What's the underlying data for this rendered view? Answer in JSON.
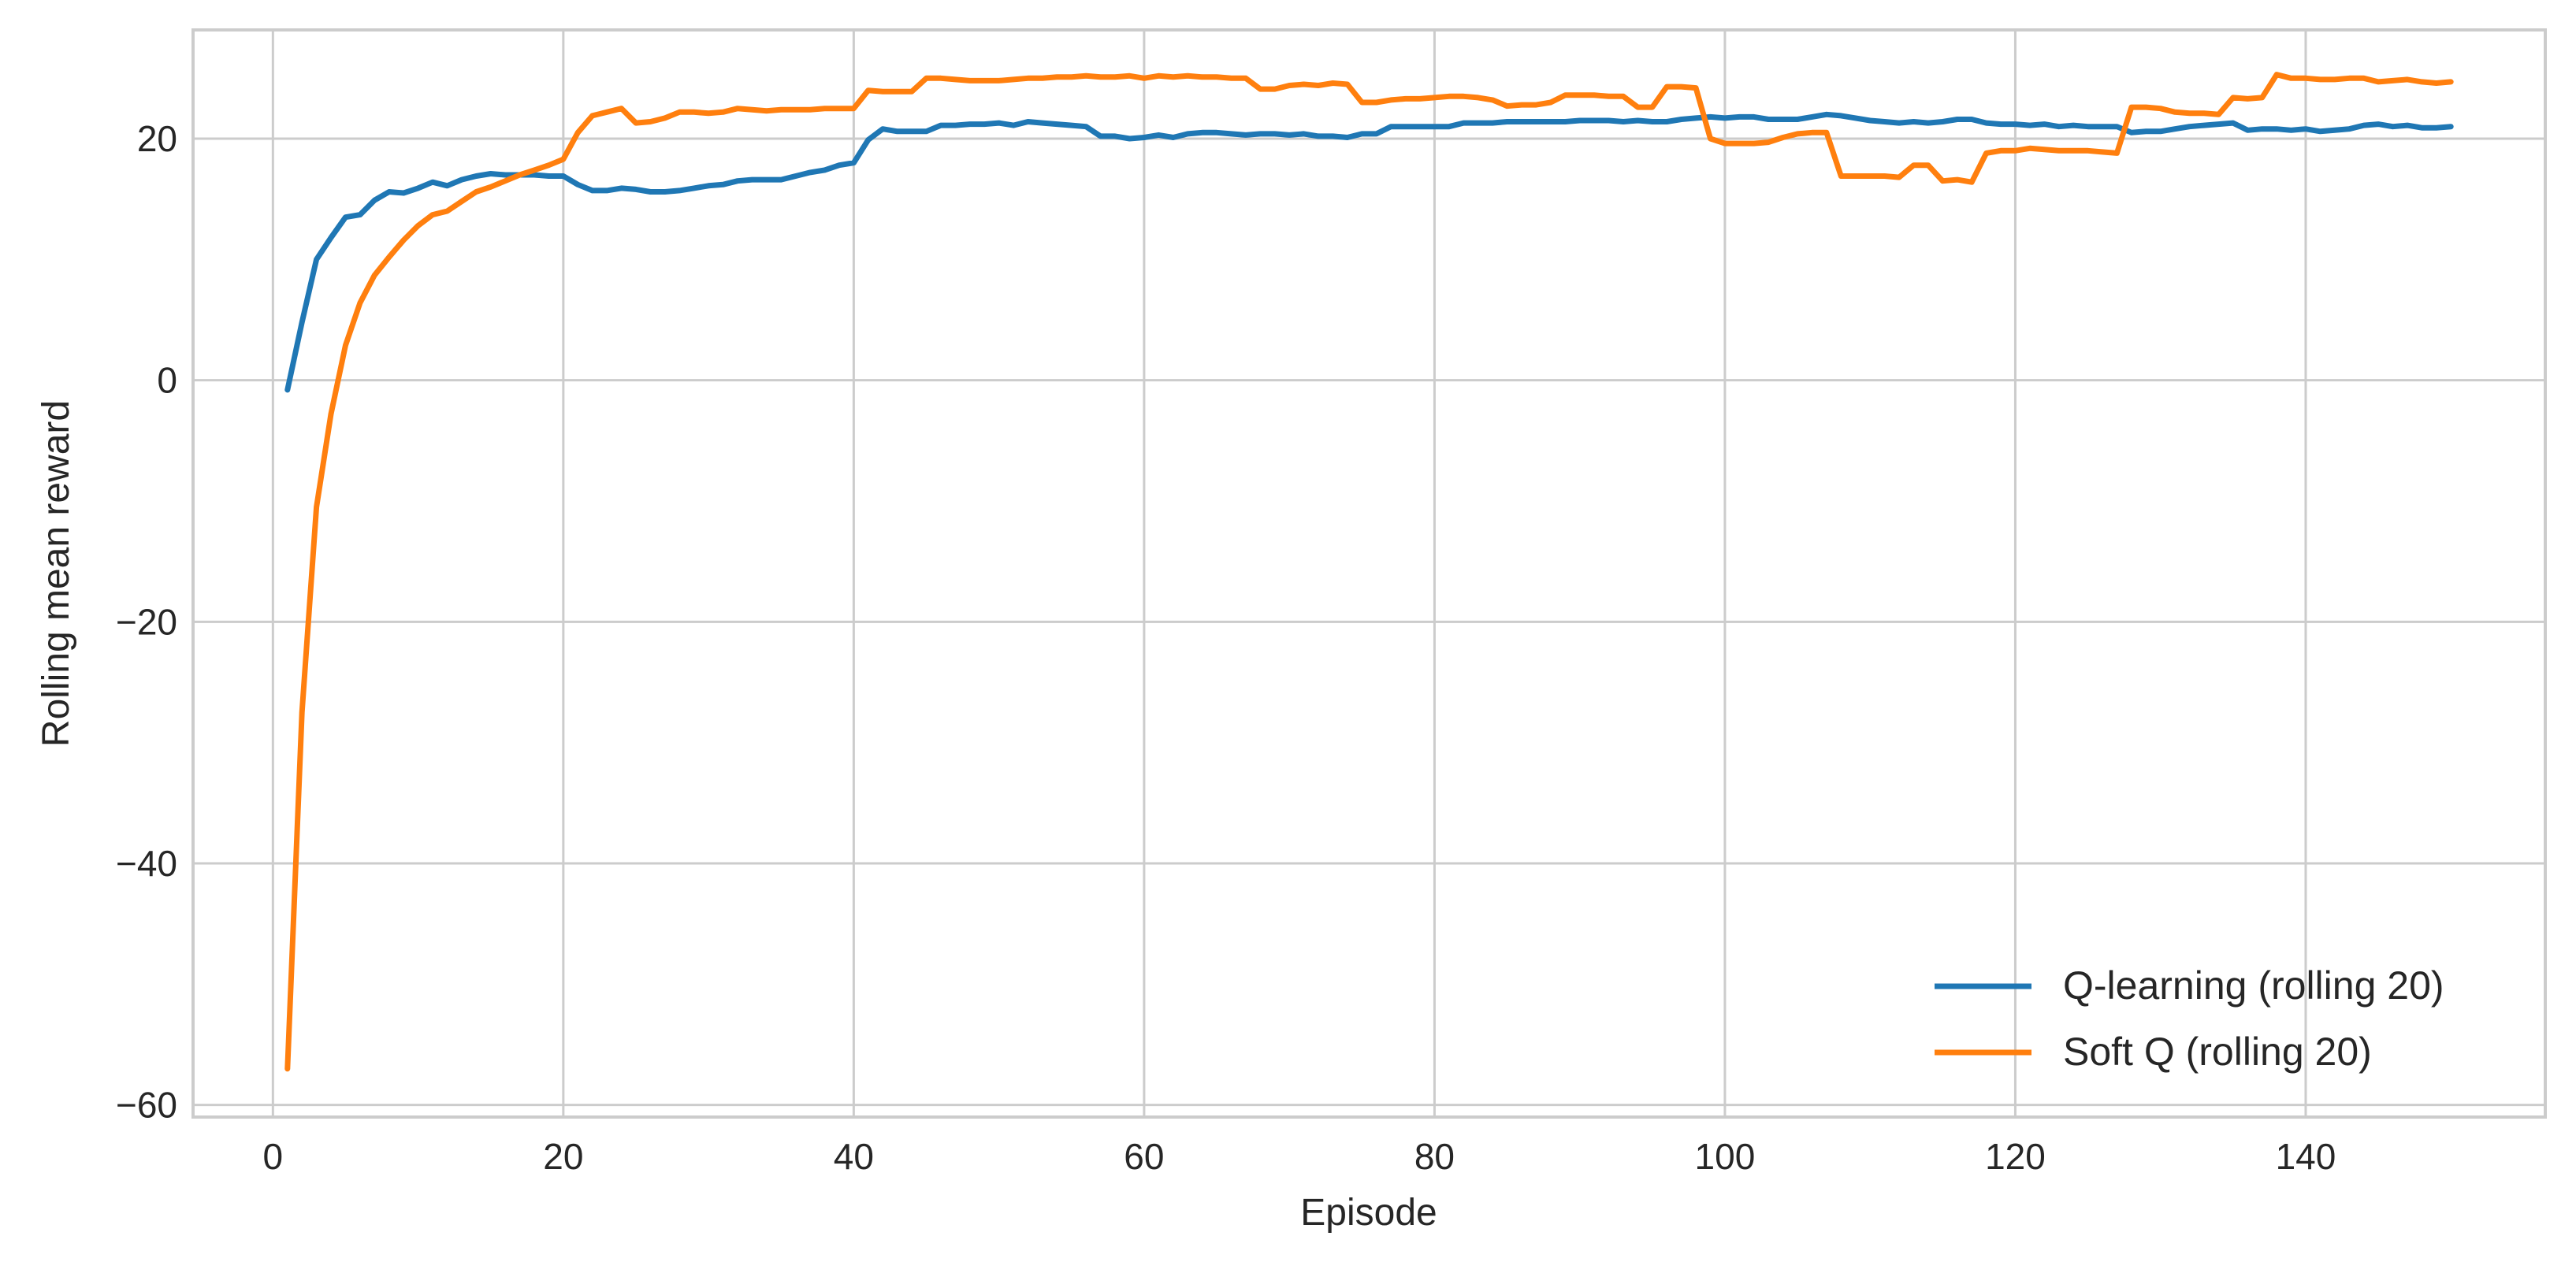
{
  "chart_data": {
    "type": "line",
    "title": "",
    "xlabel": "Episode",
    "ylabel": "Rolling mean reward",
    "xlim": [
      -5.5,
      156.5
    ],
    "ylim": [
      -61,
      29
    ],
    "xticks": [
      0,
      20,
      40,
      60,
      80,
      100,
      120,
      140
    ],
    "yticks": [
      20,
      0,
      -20,
      -40,
      -60
    ],
    "xtick_labels": [
      "0",
      "20",
      "40",
      "60",
      "80",
      "100",
      "120",
      "140"
    ],
    "ytick_labels": [
      "20",
      "0",
      "−20",
      "−40",
      "−60"
    ],
    "grid": true,
    "legend_position": "lower-right",
    "series": [
      {
        "name": "Q-learning (rolling 20)",
        "color": "#1f77b4",
        "x": [
          1,
          2,
          3,
          4,
          5,
          6,
          7,
          8,
          9,
          10,
          11,
          12,
          13,
          14,
          15,
          16,
          17,
          18,
          19,
          20,
          21,
          22,
          23,
          24,
          25,
          26,
          27,
          28,
          29,
          30,
          31,
          32,
          33,
          34,
          35,
          36,
          37,
          38,
          39,
          40,
          41,
          42,
          43,
          44,
          45,
          46,
          47,
          48,
          49,
          50,
          51,
          52,
          53,
          54,
          55,
          56,
          57,
          58,
          59,
          60,
          61,
          62,
          63,
          64,
          65,
          66,
          67,
          68,
          69,
          70,
          71,
          72,
          73,
          74,
          75,
          76,
          77,
          78,
          79,
          80,
          81,
          82,
          83,
          84,
          85,
          86,
          87,
          88,
          89,
          90,
          91,
          92,
          93,
          94,
          95,
          96,
          97,
          98,
          99,
          100,
          101,
          102,
          103,
          104,
          105,
          106,
          107,
          108,
          109,
          110,
          111,
          112,
          113,
          114,
          115,
          116,
          117,
          118,
          119,
          120,
          121,
          122,
          123,
          124,
          125,
          126,
          127,
          128,
          129,
          130,
          131,
          132,
          133,
          134,
          135,
          136,
          137,
          138,
          139,
          140,
          141,
          142,
          143,
          144,
          145,
          146,
          147,
          148,
          149,
          150
        ],
        "y": [
          -0.8,
          4.8,
          10.0,
          11.8,
          13.5,
          13.7,
          14.9,
          15.6,
          15.5,
          15.9,
          16.4,
          16.1,
          16.6,
          16.9,
          17.1,
          17.0,
          17.0,
          17.0,
          16.9,
          16.9,
          16.2,
          15.7,
          15.7,
          15.9,
          15.8,
          15.6,
          15.6,
          15.7,
          15.9,
          16.1,
          16.2,
          16.5,
          16.6,
          16.6,
          16.6,
          16.9,
          17.2,
          17.4,
          17.8,
          18.0,
          19.9,
          20.8,
          20.6,
          20.6,
          20.6,
          21.1,
          21.1,
          21.2,
          21.2,
          21.3,
          21.1,
          21.4,
          21.3,
          21.2,
          21.1,
          21.0,
          20.2,
          20.2,
          20.0,
          20.1,
          20.3,
          20.1,
          20.4,
          20.5,
          20.5,
          20.4,
          20.3,
          20.4,
          20.4,
          20.3,
          20.4,
          20.2,
          20.2,
          20.1,
          20.4,
          20.4,
          21.0,
          21.0,
          21.0,
          21.0,
          21.0,
          21.3,
          21.3,
          21.3,
          21.4,
          21.4,
          21.4,
          21.4,
          21.4,
          21.5,
          21.5,
          21.5,
          21.4,
          21.5,
          21.4,
          21.4,
          21.6,
          21.7,
          21.8,
          21.7,
          21.8,
          21.8,
          21.6,
          21.6,
          21.6,
          21.8,
          22.0,
          21.9,
          21.7,
          21.5,
          21.4,
          21.3,
          21.4,
          21.3,
          21.4,
          21.6,
          21.6,
          21.3,
          21.2,
          21.2,
          21.1,
          21.2,
          21.0,
          21.1,
          21.0,
          21.0,
          21.0,
          20.5,
          20.6,
          20.6,
          20.8,
          21.0,
          21.1,
          21.2,
          21.3,
          20.7,
          20.8,
          20.8,
          20.7,
          20.8,
          20.6,
          20.7,
          20.8,
          21.1,
          21.2,
          21.0,
          21.1,
          20.9,
          20.9,
          21.0
        ]
      },
      {
        "name": "Soft Q (rolling 20)",
        "color": "#ff7f0e",
        "x": [
          1,
          2,
          3,
          4,
          5,
          6,
          7,
          8,
          9,
          10,
          11,
          12,
          13,
          14,
          15,
          16,
          17,
          18,
          19,
          20,
          21,
          22,
          23,
          24,
          25,
          26,
          27,
          28,
          29,
          30,
          31,
          32,
          33,
          34,
          35,
          36,
          37,
          38,
          39,
          40,
          41,
          42,
          43,
          44,
          45,
          46,
          47,
          48,
          49,
          50,
          51,
          52,
          53,
          54,
          55,
          56,
          57,
          58,
          59,
          60,
          61,
          62,
          63,
          64,
          65,
          66,
          67,
          68,
          69,
          70,
          71,
          72,
          73,
          74,
          75,
          76,
          77,
          78,
          79,
          80,
          81,
          82,
          83,
          84,
          85,
          86,
          87,
          88,
          89,
          90,
          91,
          92,
          93,
          94,
          95,
          96,
          97,
          98,
          99,
          100,
          101,
          102,
          103,
          104,
          105,
          106,
          107,
          108,
          109,
          110,
          111,
          112,
          113,
          114,
          115,
          116,
          117,
          118,
          119,
          120,
          121,
          122,
          123,
          124,
          125,
          126,
          127,
          128,
          129,
          130,
          131,
          132,
          133,
          134,
          135,
          136,
          137,
          138,
          139,
          140,
          141,
          142,
          143,
          144,
          145,
          146,
          147,
          148,
          149,
          150
        ],
        "y": [
          -57.0,
          -27.5,
          -10.5,
          -2.8,
          2.9,
          6.4,
          8.7,
          10.2,
          11.6,
          12.8,
          13.7,
          14.0,
          14.8,
          15.6,
          16.0,
          16.5,
          17.0,
          17.4,
          17.8,
          18.3,
          20.5,
          21.9,
          22.2,
          22.5,
          21.3,
          21.4,
          21.7,
          22.2,
          22.2,
          22.1,
          22.2,
          22.5,
          22.4,
          22.3,
          22.4,
          22.4,
          22.4,
          22.5,
          22.5,
          22.5,
          24.0,
          23.9,
          23.9,
          23.9,
          25.0,
          25.0,
          24.9,
          24.8,
          24.8,
          24.8,
          24.9,
          25.0,
          25.0,
          25.1,
          25.1,
          25.2,
          25.1,
          25.1,
          25.2,
          25.0,
          25.2,
          25.1,
          25.2,
          25.1,
          25.1,
          25.0,
          25.0,
          24.1,
          24.1,
          24.4,
          24.5,
          24.4,
          24.6,
          24.5,
          23.0,
          23.0,
          23.2,
          23.3,
          23.3,
          23.4,
          23.5,
          23.5,
          23.4,
          23.2,
          22.7,
          22.8,
          22.8,
          23.0,
          23.6,
          23.6,
          23.6,
          23.5,
          23.5,
          22.6,
          22.6,
          24.3,
          24.3,
          24.2,
          20.0,
          19.6,
          19.6,
          19.6,
          19.7,
          20.1,
          20.4,
          20.5,
          20.5,
          16.9,
          16.9,
          16.9,
          16.9,
          16.8,
          17.8,
          17.8,
          16.5,
          16.6,
          16.4,
          18.8,
          19.0,
          19.0,
          19.2,
          19.1,
          19.0,
          19.0,
          19.0,
          18.9,
          18.8,
          22.6,
          22.6,
          22.5,
          22.2,
          22.1,
          22.1,
          22.0,
          23.4,
          23.3,
          23.4,
          25.3,
          25.0,
          25.0,
          24.9,
          24.9,
          25.0,
          25.0,
          24.7,
          24.8,
          24.9,
          24.7,
          24.6,
          24.7
        ]
      }
    ]
  }
}
